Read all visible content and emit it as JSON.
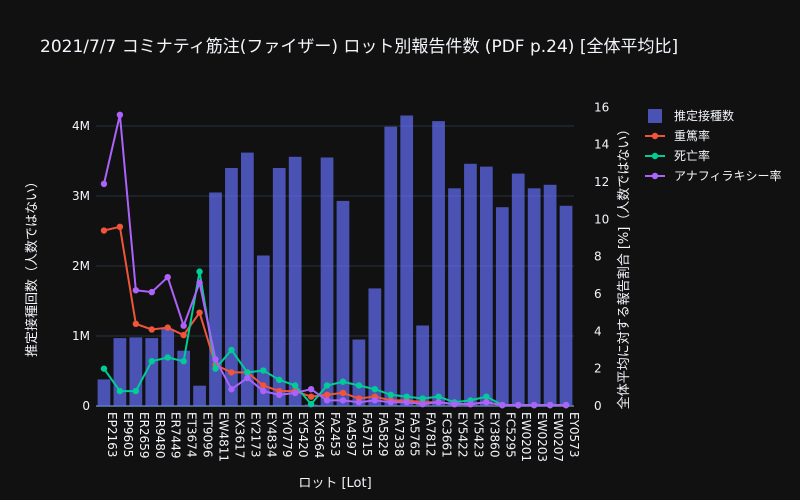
{
  "chart_data": {
    "type": "bar",
    "title": "2021/7/7 コミナティ筋注(ファイザー) ロット別報告件数 (PDF p.24) [全体平均比]",
    "xlabel": "ロット [Lot]",
    "ylabel": "推定接種回数（人数ではない）",
    "y2label": "全体平均に対する報告割合 [%]（人数ではない）",
    "ylim": [
      0,
      4400000
    ],
    "y2lim": [
      0,
      16.5
    ],
    "yticks": [
      0,
      1000000,
      2000000,
      3000000,
      4000000
    ],
    "yticklabels": [
      "0",
      "1M",
      "2M",
      "3M",
      "4M"
    ],
    "y2ticks": [
      0,
      2,
      4,
      6,
      8,
      10,
      12,
      14,
      16
    ],
    "categories": [
      "EP2163",
      "EP9605",
      "ER2659",
      "ER9480",
      "ER7449",
      "ET3674",
      "ET9096",
      "EW4811",
      "EX3617",
      "EY2173",
      "EY4834",
      "EY0779",
      "EY5420",
      "EX6564",
      "FA2453",
      "FA4597",
      "FA5715",
      "FA5829",
      "FA7338",
      "FA5765",
      "FA7812",
      "FC3661",
      "EY5422",
      "EY5423",
      "EY3860",
      "FC5295",
      "EW0201",
      "EW0203",
      "EW0207",
      "EY0573"
    ],
    "series": [
      {
        "name": "推定接種数",
        "type": "bar",
        "axis": "y",
        "color": "#636efa",
        "values": [
          380000,
          970000,
          980000,
          970000,
          1100000,
          790000,
          290000,
          3050000,
          3400000,
          3620000,
          2150000,
          3400000,
          3560000,
          20000,
          3550000,
          2930000,
          950000,
          1680000,
          3990000,
          4150000,
          1150000,
          4070000,
          3110000,
          3460000,
          3420000,
          2840000,
          3320000,
          3110000,
          3160000,
          2860000
        ]
      },
      {
        "name": "重篤率",
        "type": "line",
        "axis": "y2",
        "color": "#ef553b",
        "values": [
          9.4,
          9.6,
          4.4,
          4.1,
          4.2,
          3.8,
          5.0,
          2.2,
          1.8,
          1.8,
          1.1,
          0.8,
          0.8,
          0.5,
          0.6,
          0.7,
          0.4,
          0.5,
          0.3,
          0.3,
          0.2,
          0.2,
          0.1,
          0.1,
          0.2,
          0.05,
          0.05,
          0.05,
          0.05,
          0.05
        ]
      },
      {
        "name": "死亡率",
        "type": "line",
        "axis": "y2",
        "color": "#00cc96",
        "values": [
          2.0,
          0.8,
          0.8,
          2.4,
          2.6,
          2.4,
          7.2,
          2.0,
          3.0,
          1.8,
          1.9,
          1.4,
          1.1,
          0.1,
          1.1,
          1.3,
          1.1,
          0.9,
          0.6,
          0.5,
          0.4,
          0.5,
          0.2,
          0.3,
          0.5,
          0.05,
          0.05,
          0.05,
          0.05,
          0.05
        ]
      },
      {
        "name": "アナフィラキシー率",
        "type": "line",
        "axis": "y2",
        "color": "#ab63fa",
        "values": [
          11.9,
          15.6,
          6.2,
          6.1,
          6.9,
          4.3,
          6.6,
          2.5,
          0.9,
          1.5,
          0.8,
          0.6,
          0.7,
          0.9,
          0.3,
          0.3,
          0.2,
          0.3,
          0.2,
          0.2,
          0.1,
          0.2,
          0.1,
          0.1,
          0.2,
          0.05,
          0.05,
          0.05,
          0.05,
          0.05
        ]
      }
    ],
    "grid": true,
    "legend": "top-right"
  }
}
